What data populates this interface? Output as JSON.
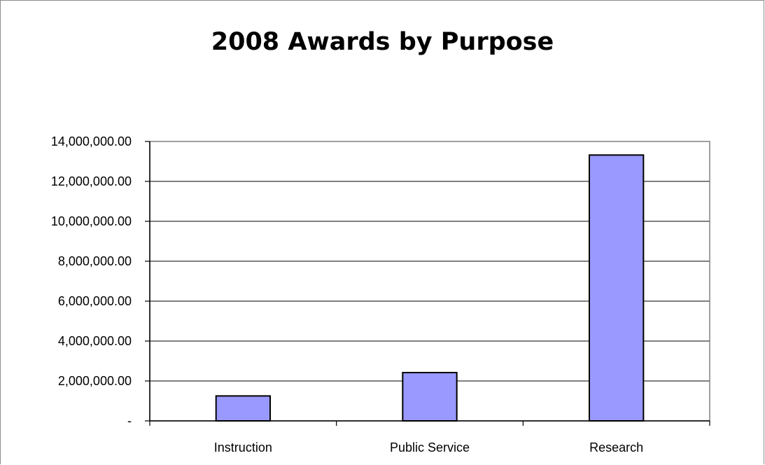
{
  "chart_data": {
    "type": "bar",
    "title": "2008 Awards by Purpose",
    "xlabel": "",
    "ylabel": "",
    "categories": [
      "Instruction",
      "Public Service",
      "Research"
    ],
    "values": [
      1250000,
      2420000,
      13320000
    ],
    "ylim": [
      0,
      14000000
    ],
    "yticks": [
      {
        "value": 0,
        "label": "-"
      },
      {
        "value": 2000000,
        "label": "2,000,000.00"
      },
      {
        "value": 4000000,
        "label": "4,000,000.00"
      },
      {
        "value": 6000000,
        "label": "6,000,000.00"
      },
      {
        "value": 8000000,
        "label": "8,000,000.00"
      },
      {
        "value": 10000000,
        "label": "10,000,000.00"
      },
      {
        "value": 12000000,
        "label": "12,000,000.00"
      },
      {
        "value": 14000000,
        "label": "14,000,000.00"
      }
    ],
    "grid": true,
    "legend": "none",
    "colors": {
      "bar_fill": "#9999ff",
      "bar_stroke": "#000000",
      "grid": "#000000",
      "plot_border": "#808080"
    }
  }
}
